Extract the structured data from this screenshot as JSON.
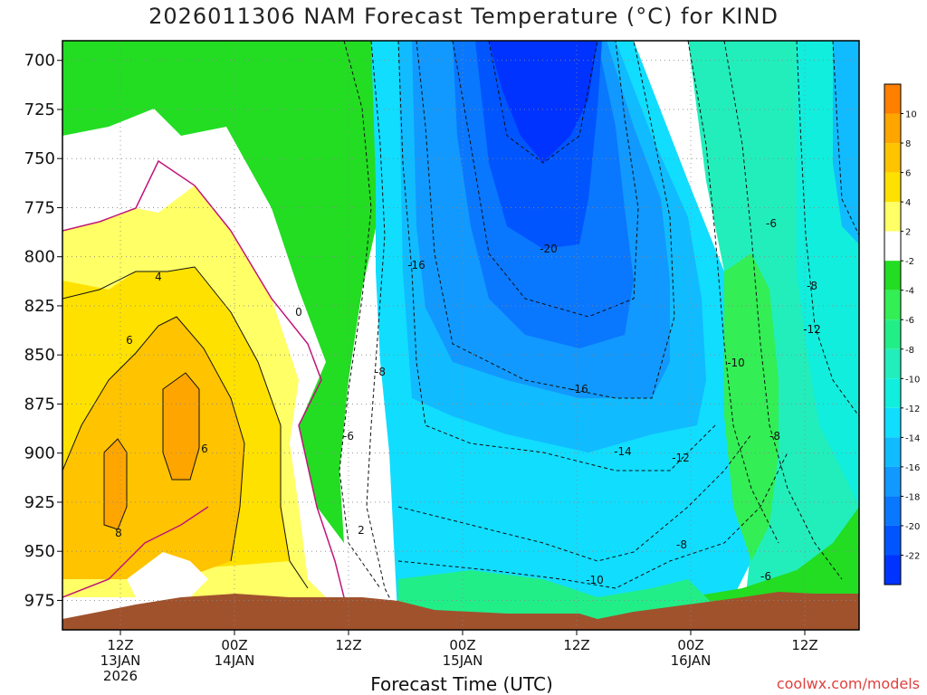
{
  "title": "2026011306 NAM Forecast Temperature (°C) for KIND",
  "xlabel": "Forecast Time (UTC)",
  "credit": "coolwx.com/models",
  "chart_data": {
    "type": "heatmap",
    "title": "2026011306 NAM Forecast Temperature (°C) for KIND",
    "xlabel": "Forecast Time (UTC)",
    "ylabel": "",
    "y_ticks": [
      700,
      725,
      750,
      775,
      800,
      825,
      850,
      875,
      900,
      925,
      950,
      975
    ],
    "y_range": [
      690,
      990
    ],
    "x_ticks": [
      {
        "lines": [
          "12Z",
          "13JAN",
          "2026"
        ]
      },
      {
        "lines": [
          "00Z",
          "14JAN"
        ]
      },
      {
        "lines": [
          "12Z"
        ]
      },
      {
        "lines": [
          "00Z",
          "15JAN"
        ]
      },
      {
        "lines": [
          "12Z"
        ]
      },
      {
        "lines": [
          "00Z",
          "16JAN"
        ]
      },
      {
        "lines": [
          "12Z"
        ]
      }
    ],
    "colorbar": {
      "colors": [
        "#ff7f00",
        "#ffa500",
        "#ffc300",
        "#ffe100",
        "#ffff66",
        "#ffffff",
        "#22dd22",
        "#33ee55",
        "#22ee88",
        "#22eebb",
        "#11eedd",
        "#11ddff",
        "#11bbff",
        "#1199ff",
        "#0a77ff",
        "#0055ff",
        "#0033ff"
      ],
      "labels": [
        "10",
        "8",
        "6",
        "4",
        "2",
        "-2",
        "-4",
        "-6",
        "-8",
        "-10",
        "-12",
        "-14",
        "-16",
        "-18",
        "-20",
        "-22"
      ]
    },
    "contour_labels": [
      "4",
      "6",
      "6",
      "8",
      "0",
      "-8",
      "-6",
      "2",
      "-16",
      "-20",
      "-16",
      "-14",
      "-12",
      "-10",
      "-8",
      "-6",
      "-8",
      "-12",
      "-10",
      "-8",
      "-6"
    ],
    "grid": true,
    "legend": "right"
  }
}
